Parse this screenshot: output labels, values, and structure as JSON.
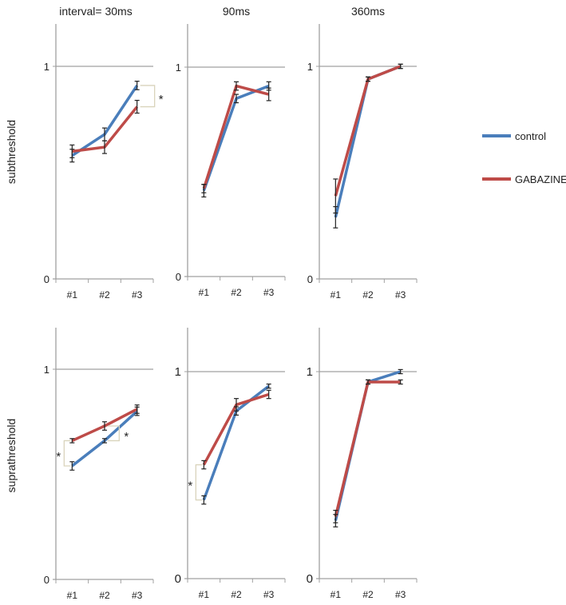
{
  "chart_data": [
    {
      "type": "line",
      "row_label": "subthreshold",
      "title": "interval= 30ms",
      "categories": [
        "#1",
        "#2",
        "#3"
      ],
      "ylim": [
        0,
        1.2
      ],
      "yticks": [
        "0",
        "1"
      ],
      "series": [
        {
          "name": "control",
          "values": [
            0.58,
            0.68,
            0.91
          ],
          "errors": [
            0.03,
            0.03,
            0.02
          ]
        },
        {
          "name": "GABAZINE",
          "values": [
            0.6,
            0.62,
            0.81
          ],
          "errors": [
            0.03,
            0.03,
            0.03
          ]
        }
      ],
      "annotations": [
        {
          "text": "*",
          "at": "#3"
        }
      ]
    },
    {
      "type": "line",
      "row_label": "subthreshold",
      "title": "90ms",
      "categories": [
        "#1",
        "#2",
        "#3"
      ],
      "ylim": [
        0,
        1.2
      ],
      "yticks": [
        "0",
        "1"
      ],
      "series": [
        {
          "name": "control",
          "values": [
            0.41,
            0.85,
            0.91
          ],
          "errors": [
            0.03,
            0.02,
            0.02
          ]
        },
        {
          "name": "GABAZINE",
          "values": [
            0.42,
            0.91,
            0.87
          ],
          "errors": [
            0.02,
            0.02,
            0.03
          ]
        }
      ],
      "annotations": []
    },
    {
      "type": "line",
      "row_label": "subthreshold",
      "title": "360ms",
      "categories": [
        "#1",
        "#2",
        "#3"
      ],
      "ylim": [
        0,
        1.2
      ],
      "yticks": [
        "0",
        "1"
      ],
      "series": [
        {
          "name": "control",
          "values": [
            0.29,
            0.94,
            1.0
          ],
          "errors": [
            0.05,
            0.01,
            0.01
          ]
        },
        {
          "name": "GABAZINE",
          "values": [
            0.39,
            0.94,
            1.0
          ],
          "errors": [
            0.08,
            0.01,
            0.01
          ]
        }
      ],
      "annotations": []
    },
    {
      "type": "line",
      "row_label": "suprathreshold",
      "title": "",
      "categories": [
        "#1",
        "#2",
        "#3"
      ],
      "ylim": [
        0,
        1.2
      ],
      "yticks": [
        "0",
        "1"
      ],
      "series": [
        {
          "name": "control",
          "values": [
            0.54,
            0.66,
            0.8
          ],
          "errors": [
            0.02,
            0.01,
            0.02
          ]
        },
        {
          "name": "GABAZINE",
          "values": [
            0.66,
            0.73,
            0.81
          ],
          "errors": [
            0.01,
            0.02,
            0.02
          ]
        }
      ],
      "annotations": [
        {
          "text": "*",
          "at": "#1"
        },
        {
          "text": "*",
          "at": "#2"
        }
      ]
    },
    {
      "type": "line",
      "row_label": "suprathreshold",
      "title": "",
      "categories": [
        "#1",
        "#2",
        "#3"
      ],
      "ylim": [
        0,
        1.2
      ],
      "yticks": [
        "0",
        "1"
      ],
      "series": [
        {
          "name": "control",
          "values": [
            0.38,
            0.81,
            0.93
          ],
          "errors": [
            0.02,
            0.02,
            0.01
          ]
        },
        {
          "name": "GABAZINE",
          "values": [
            0.55,
            0.84,
            0.89
          ],
          "errors": [
            0.02,
            0.03,
            0.02
          ]
        }
      ],
      "annotations": [
        {
          "text": "*",
          "at": "#1"
        }
      ]
    },
    {
      "type": "line",
      "row_label": "suprathreshold",
      "title": "",
      "categories": [
        "#1",
        "#2",
        "#3"
      ],
      "ylim": [
        0,
        1.2
      ],
      "yticks": [
        "0",
        "1"
      ],
      "series": [
        {
          "name": "control",
          "values": [
            0.28,
            0.95,
            1.0
          ],
          "errors": [
            0.03,
            0.01,
            0.01
          ]
        },
        {
          "name": "GABAZINE",
          "values": [
            0.3,
            0.95,
            0.95
          ],
          "errors": [
            0.03,
            0.01,
            0.01
          ]
        }
      ],
      "annotations": []
    }
  ],
  "titles": {
    "col1": "interval= 30ms",
    "col2": "90ms",
    "col3": "360ms"
  },
  "row_labels": {
    "top": "subthreshold",
    "bottom": "suprathreshold"
  },
  "legend": {
    "placement": "right",
    "items": [
      {
        "label": "control",
        "color": "#4a7ebb"
      },
      {
        "label": "GABAZINE",
        "color": "#be4b48"
      }
    ]
  },
  "colors": {
    "control": "#4a7ebb",
    "GABAZINE": "#be4b48",
    "axis": "#a0a0a0",
    "bracket": "#d9d4bc"
  }
}
